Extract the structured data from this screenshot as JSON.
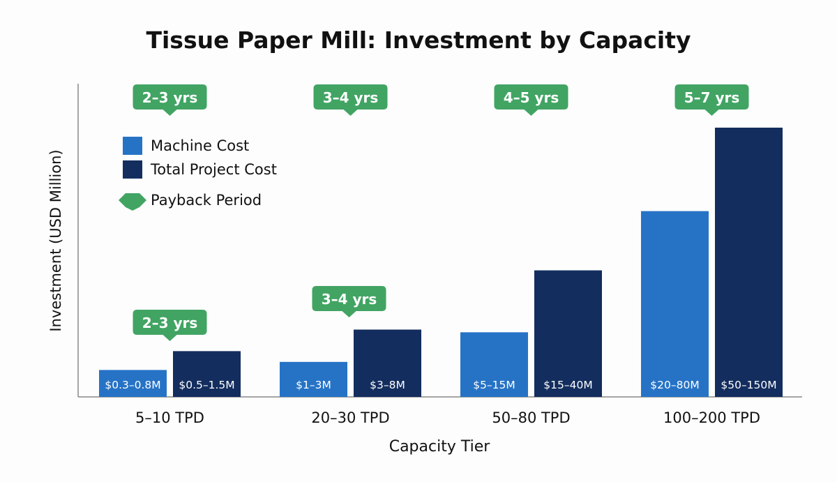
{
  "chart_data": {
    "type": "bar",
    "title": "Tissue Paper Mill: Investment by Capacity",
    "xlabel": "Capacity Tier",
    "ylabel": "Investment (USD Million)",
    "categories": [
      "5–10 TPD",
      "20–30 TPD",
      "50–80 TPD",
      "100–200 TPD"
    ],
    "series": [
      {
        "name": "Machine Cost",
        "color": "#2673c6",
        "labels": [
          "$0.3–0.8M",
          "$1–3M",
          "$5–15M",
          "$20–80M"
        ],
        "relative_heights": [
          10,
          13,
          24,
          69
        ]
      },
      {
        "name": "Total Project Cost",
        "color": "#132d5e",
        "labels": [
          "$0.5–1.5M",
          "$3–8M",
          "$15–40M",
          "$50–150M"
        ],
        "relative_heights": [
          17,
          25,
          47,
          100
        ]
      }
    ],
    "payback": {
      "name": "Payback Period",
      "color": "#41a463",
      "top_labels": [
        "2–3 yrs",
        "3–4 yrs",
        "4–5 yrs",
        "5–7 yrs"
      ],
      "inline_labels": [
        "2–3 yrs",
        "3–4 yrs"
      ]
    },
    "y_ticks": "none",
    "grid": false,
    "legend_position": "top-left"
  }
}
